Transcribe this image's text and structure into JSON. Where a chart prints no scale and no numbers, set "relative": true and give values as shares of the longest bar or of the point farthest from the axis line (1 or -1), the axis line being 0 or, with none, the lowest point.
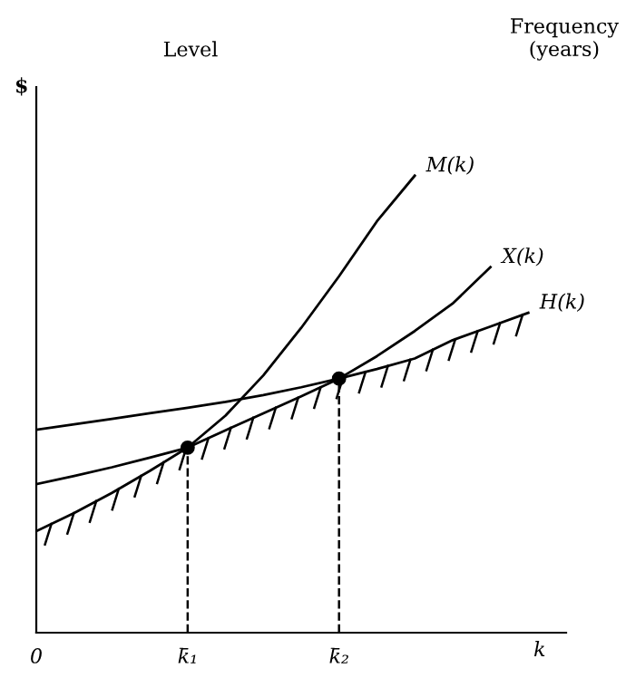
{
  "chart_data": {
    "type": "line",
    "relative": true,
    "title": "Level",
    "ylabel": "$",
    "xlabel": "k",
    "annotations": [
      "Frequency\n(years)"
    ],
    "legend": false,
    "grid": false,
    "tick_labels": "x",
    "marker": "none",
    "line_style": "solid",
    "categories": [
      "0",
      null,
      null,
      null,
      "k̄₁",
      null,
      null,
      null,
      "k̄₂",
      null,
      null,
      null,
      null,
      null,
      null
    ],
    "series": [
      {
        "name": "M(k)",
        "color": "#000000",
        "values": [
          0.222,
          0.262,
          0.306,
          0.354,
          0.405,
          0.475,
          0.563,
          0.667,
          0.78,
          0.9,
          1.0,
          null,
          null,
          null,
          null
        ]
      },
      {
        "name": "X(k)",
        "color": "#000000",
        "values": [
          0.325,
          0.343,
          0.362,
          0.383,
          0.405,
          0.443,
          0.48,
          0.517,
          0.556,
          0.605,
          0.66,
          0.72,
          0.8,
          null,
          null
        ]
      },
      {
        "name": "H(k)",
        "color": "#000000",
        "values": [
          0.444,
          0.456,
          0.468,
          0.48,
          0.492,
          0.505,
          0.52,
          0.537,
          0.556,
          0.577,
          0.6,
          0.64,
          0.67,
          0.7,
          null
        ]
      },
      {
        "type": "scatter",
        "marker": "circle",
        "line_style": "dashed",
        "color": "#000000",
        "values": [
          null,
          null,
          null,
          null,
          0.405,
          null,
          null,
          null,
          0.556,
          null,
          null,
          null,
          null,
          null,
          null
        ]
      }
    ]
  }
}
